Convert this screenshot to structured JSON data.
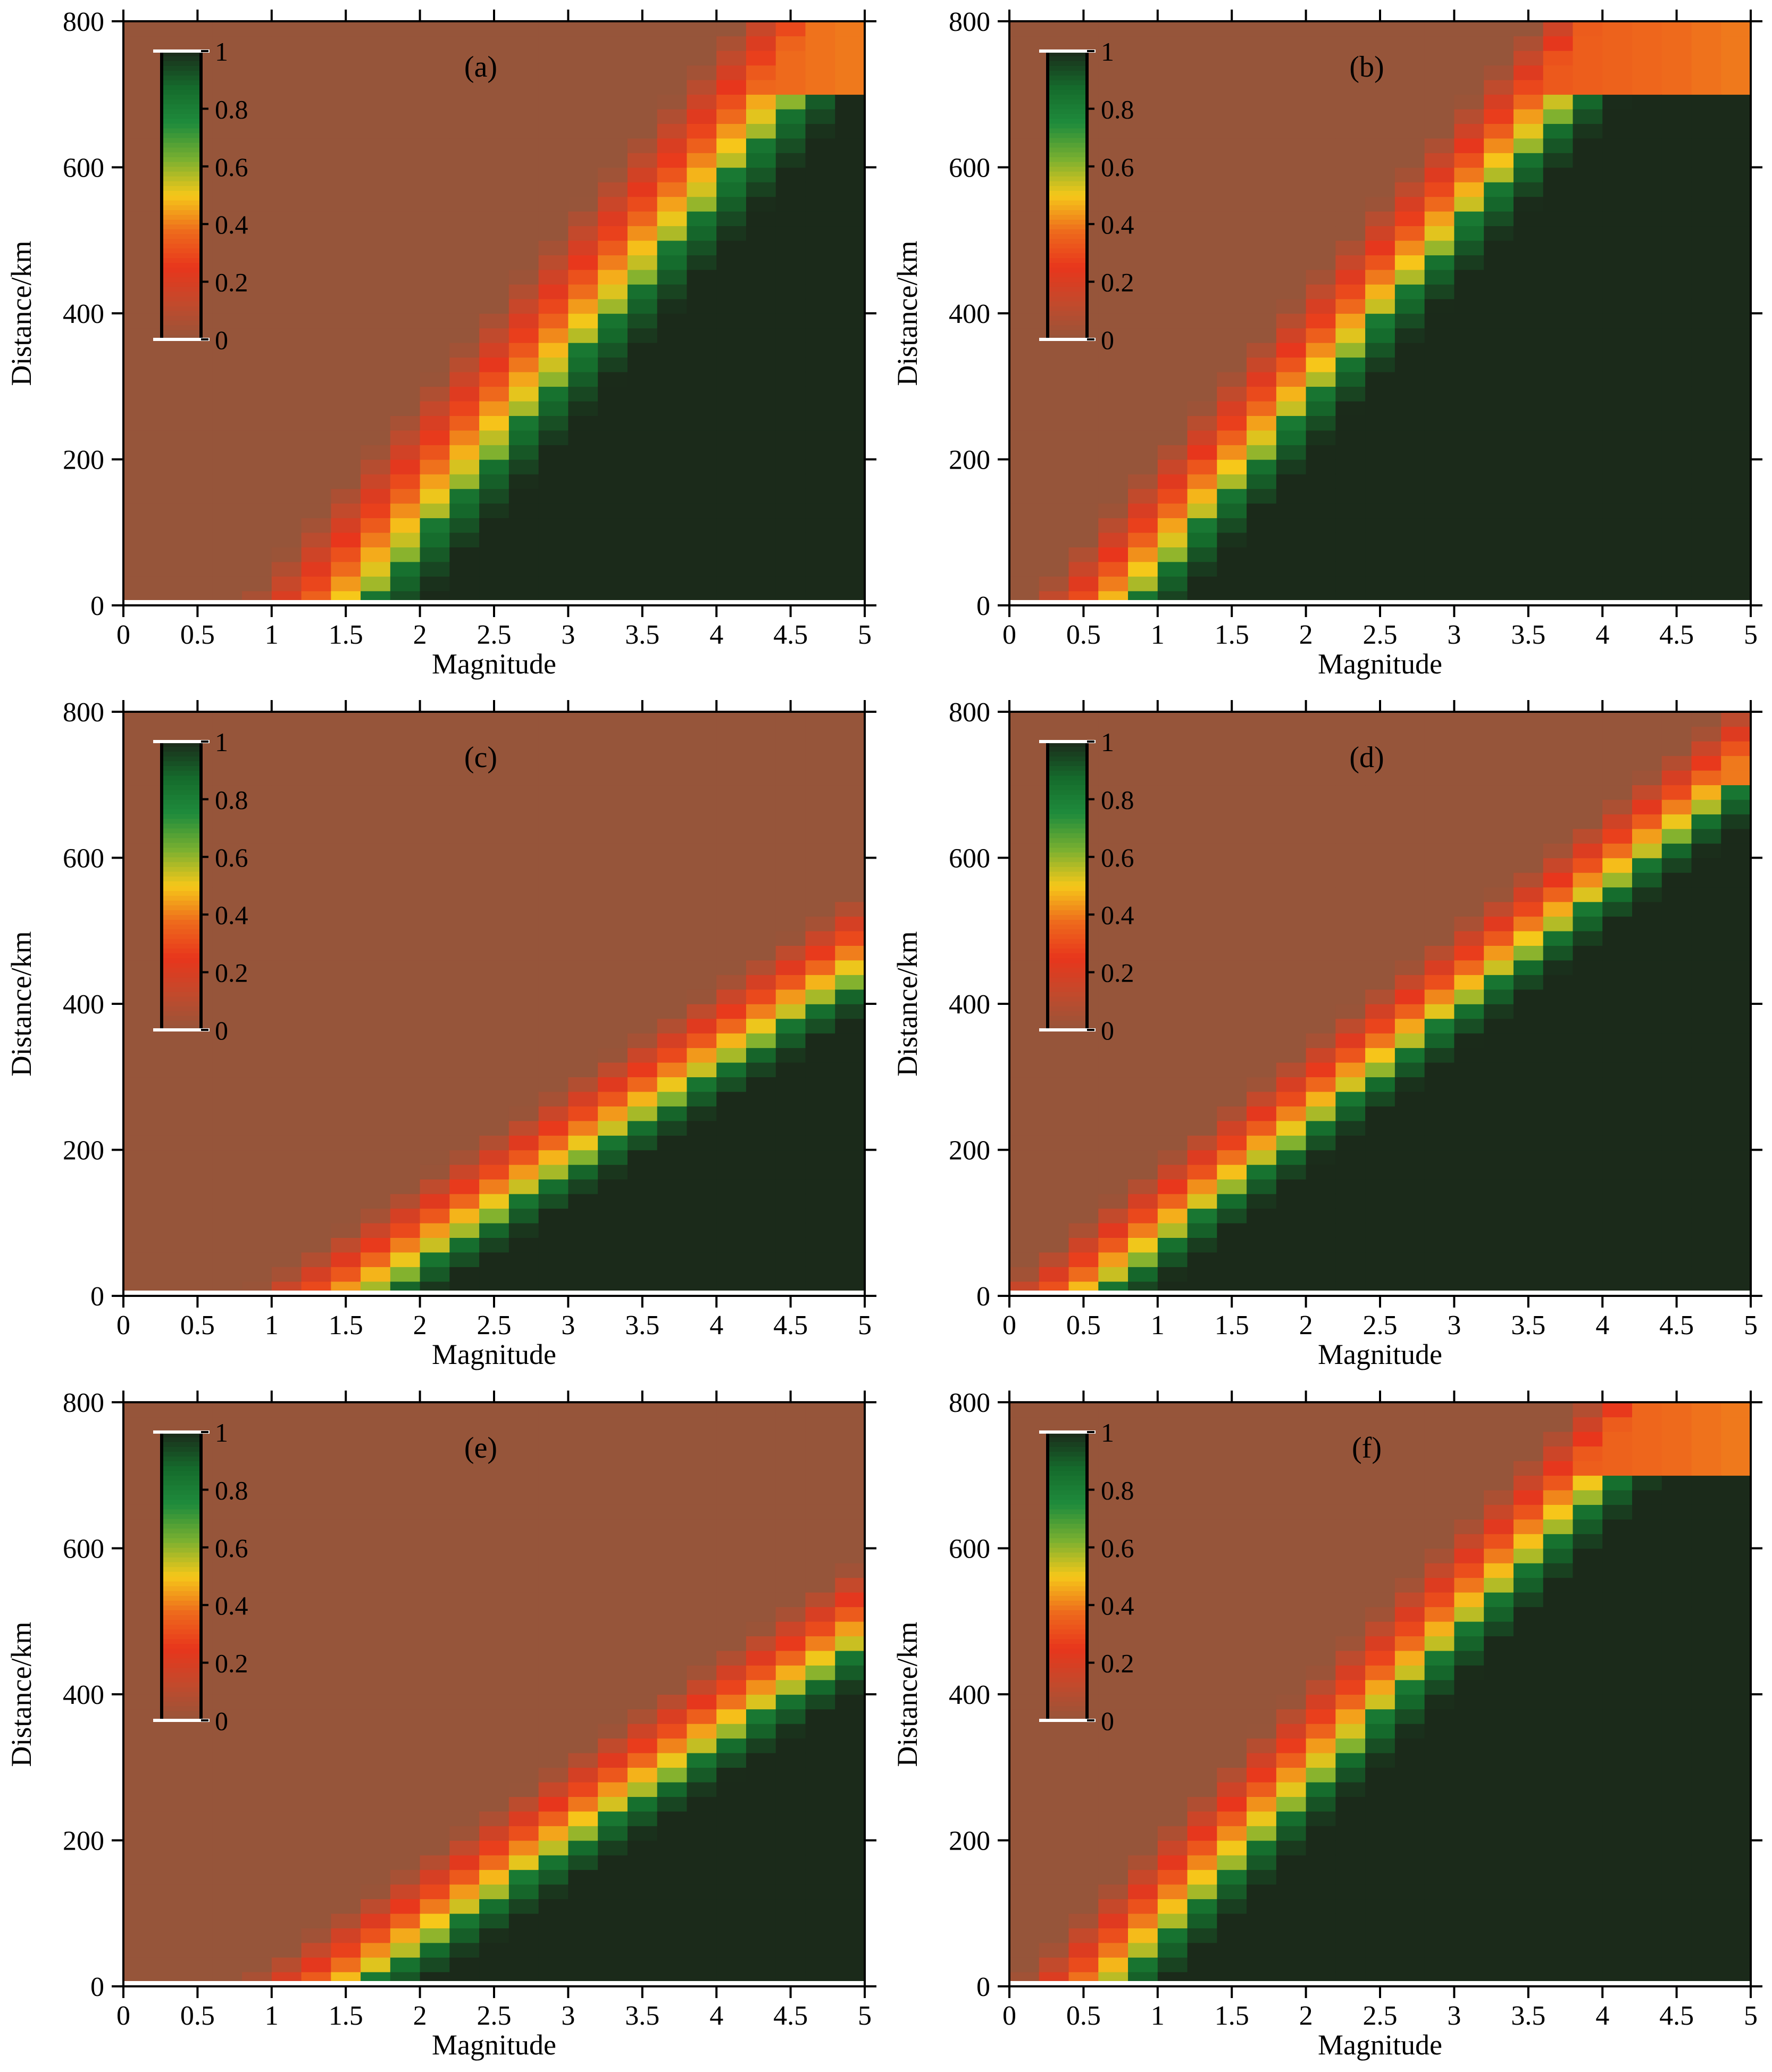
{
  "figure": {
    "panels": [
      {
        "label": "(a)",
        "type": "heatmap",
        "profile": {
          "mode": "a",
          "bBase": 1.62,
          "bSlope": 0.0042,
          "t1": 0.55,
          "t2": 0.62,
          "sharp": 1.35
        }
      },
      {
        "label": "(b)",
        "type": "heatmap",
        "profile": {
          "mode": "b",
          "bBase": 0.82,
          "bSlope": 0.0043,
          "t1": 0.32,
          "t2": 0.42,
          "sharp": 1.6
        }
      },
      {
        "label": "(c)",
        "type": "heatmap",
        "profile": {
          "mode": "c",
          "bBase": 1.68,
          "bSlope": 0.0075,
          "t1": 0.75,
          "t2": 0.55,
          "sharp": 1.3
        }
      },
      {
        "label": "(d)",
        "type": "heatmap",
        "profile": {
          "mode": "b",
          "bBase": 0.6,
          "bSlope": 0.0062,
          "t1": 0.28,
          "t2": 0.38,
          "sharp": 1.55
        }
      },
      {
        "label": "(e)",
        "type": "heatmap",
        "profile": {
          "mode": "c",
          "bBase": 1.62,
          "bSlope": 0.0072,
          "t1": 0.72,
          "t2": 0.55,
          "sharp": 1.3
        }
      },
      {
        "label": "(f)",
        "type": "heatmap",
        "profile": {
          "mode": "b",
          "bBase": 0.72,
          "bSlope": 0.0048,
          "t1": 0.3,
          "t2": 0.4,
          "sharp": 1.6
        }
      }
    ],
    "axes": {
      "xlabel": "Magnitude",
      "ylabel": "Distance/km",
      "xlim": [
        0,
        5
      ],
      "ylim": [
        0,
        800
      ],
      "xticks": [
        "0",
        "0.5",
        "1",
        "1.5",
        "2",
        "2.5",
        "3",
        "3.5",
        "4",
        "4.5",
        "5"
      ],
      "yticks": [
        "0",
        "200",
        "400",
        "600",
        "800"
      ]
    },
    "colorbar": {
      "ticks": [
        "0",
        "0.2",
        "0.4",
        "0.6",
        "0.8",
        "1"
      ],
      "range": [
        0,
        1
      ],
      "placement": "top-left",
      "colors": [
        "#96553a",
        "#c24a2c",
        "#e8361c",
        "#ee6a1c",
        "#f6c81a",
        "#7ab030",
        "#1f8c3c",
        "#156b2c",
        "#1b2a1a"
      ]
    }
  },
  "chart_data": [
    {
      "type": "heatmap",
      "title": "(a)",
      "xlabel": "Magnitude",
      "ylabel": "Distance/km",
      "xlim": [
        0,
        5
      ],
      "ylim": [
        0,
        800
      ],
      "value_range": [
        0,
        1
      ],
      "description_points": [
        {
          "magnitude": 1.6,
          "distance": 0,
          "value": 0.9
        },
        {
          "magnitude": 3.0,
          "distance": 200,
          "value": 0.85
        },
        {
          "magnitude": 4.2,
          "distance": 350,
          "value": 0.8
        },
        {
          "magnitude": 5.0,
          "distance": 650,
          "value": 0.55
        }
      ]
    },
    {
      "type": "heatmap",
      "title": "(b)",
      "xlabel": "Magnitude",
      "ylabel": "Distance/km",
      "xlim": [
        0,
        5
      ],
      "ylim": [
        0,
        800
      ],
      "value_range": [
        0,
        1
      ],
      "description_points": [
        {
          "magnitude": 0.9,
          "distance": 0,
          "value": 0.9
        },
        {
          "magnitude": 2.3,
          "distance": 200,
          "value": 0.8
        },
        {
          "magnitude": 3.8,
          "distance": 400,
          "value": 0.85
        },
        {
          "magnitude": 4.5,
          "distance": 650,
          "value": 0.9
        }
      ]
    },
    {
      "type": "heatmap",
      "title": "(c)",
      "xlabel": "Magnitude",
      "ylabel": "Distance/km",
      "xlim": [
        0,
        5
      ],
      "ylim": [
        0,
        800
      ],
      "value_range": [
        0,
        1
      ],
      "description_points": [
        {
          "magnitude": 1.7,
          "distance": 0,
          "value": 0.85
        },
        {
          "magnitude": 2.7,
          "distance": 150,
          "value": 0.85
        },
        {
          "magnitude": 4.5,
          "distance": 230,
          "value": 0.8
        },
        {
          "magnitude": 5.0,
          "distance": 650,
          "value": 0.5
        }
      ]
    },
    {
      "type": "heatmap",
      "title": "(d)",
      "xlabel": "Magnitude",
      "ylabel": "Distance/km",
      "xlim": [
        0,
        5
      ],
      "ylim": [
        0,
        800
      ],
      "value_range": [
        0,
        1
      ],
      "description_points": [
        {
          "magnitude": 0.6,
          "distance": 0,
          "value": 0.85
        },
        {
          "magnitude": 2.2,
          "distance": 250,
          "value": 0.85
        },
        {
          "magnitude": 4.0,
          "distance": 430,
          "value": 0.8
        },
        {
          "magnitude": 4.8,
          "distance": 550,
          "value": 0.85
        }
      ]
    },
    {
      "type": "heatmap",
      "title": "(e)",
      "xlabel": "Magnitude",
      "ylabel": "Distance/km",
      "xlim": [
        0,
        5
      ],
      "ylim": [
        0,
        800
      ],
      "value_range": [
        0,
        1
      ],
      "description_points": [
        {
          "magnitude": 1.6,
          "distance": 0,
          "value": 0.85
        },
        {
          "magnitude": 2.6,
          "distance": 140,
          "value": 0.85
        },
        {
          "magnitude": 4.5,
          "distance": 230,
          "value": 0.8
        },
        {
          "magnitude": 5.0,
          "distance": 650,
          "value": 0.5
        }
      ]
    },
    {
      "type": "heatmap",
      "title": "(f)",
      "xlabel": "Magnitude",
      "ylabel": "Distance/km",
      "xlim": [
        0,
        5
      ],
      "ylim": [
        0,
        800
      ],
      "value_range": [
        0,
        1
      ],
      "description_points": [
        {
          "magnitude": 0.8,
          "distance": 0,
          "value": 0.9
        },
        {
          "magnitude": 2.4,
          "distance": 250,
          "value": 0.85
        },
        {
          "magnitude": 3.8,
          "distance": 400,
          "value": 0.8
        },
        {
          "magnitude": 4.8,
          "distance": 650,
          "value": 0.85
        }
      ]
    }
  ]
}
